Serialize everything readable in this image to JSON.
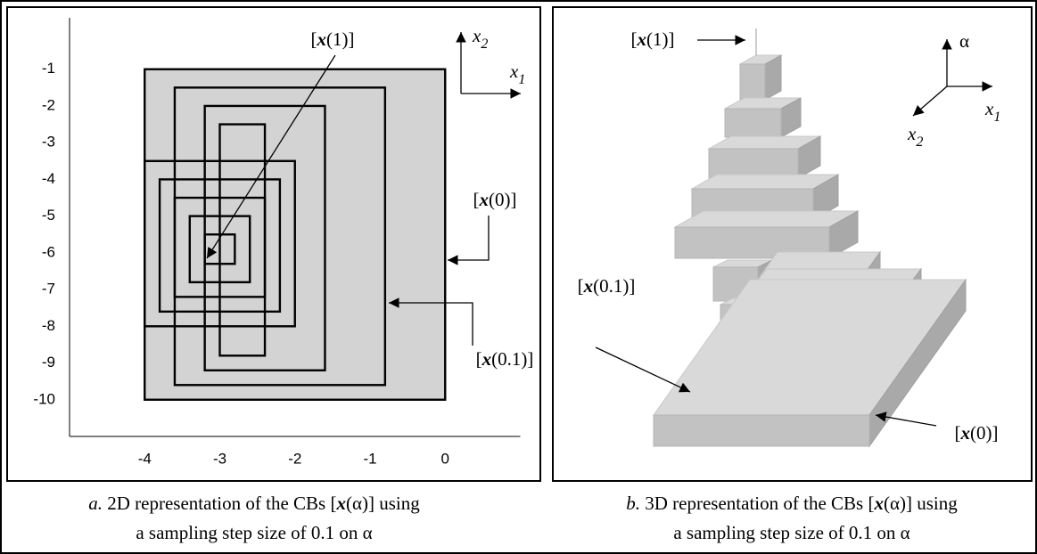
{
  "panel_a": {
    "xlim": [
      -5,
      1
    ],
    "ylim": [
      -11,
      0.4
    ],
    "xticks": [
      -4,
      -3,
      -2,
      -1,
      0
    ],
    "yticks": [
      -1,
      -2,
      -3,
      -4,
      -5,
      -6,
      -7,
      -8,
      -9,
      -10
    ],
    "boxes": [
      {
        "x": [
          -4,
          0
        ],
        "y": [
          -10,
          -1
        ]
      },
      {
        "x": [
          -3.6,
          -0.8
        ],
        "y": [
          -9.6,
          -1.5
        ]
      },
      {
        "x": [
          -3.2,
          -1.6
        ],
        "y": [
          -9.2,
          -2
        ]
      },
      {
        "x": [
          -3,
          -2.4
        ],
        "y": [
          -8.8,
          -2.5
        ]
      },
      {
        "x": [
          -4,
          -2
        ],
        "y": [
          -8,
          -3.5
        ]
      },
      {
        "x": [
          -3.8,
          -2.2
        ],
        "y": [
          -7.6,
          -4
        ]
      },
      {
        "x": [
          -3.6,
          -2.4
        ],
        "y": [
          -7.2,
          -4.5
        ]
      },
      {
        "x": [
          -3.4,
          -2.6
        ],
        "y": [
          -6.8,
          -5
        ]
      },
      {
        "x": [
          -3.2,
          -2.8
        ],
        "y": [
          -6.3,
          -5.5
        ]
      }
    ],
    "label_x1": [
      "[",
      "x",
      "(1)]"
    ],
    "label_x0": [
      "[",
      "x",
      "(0)]"
    ],
    "label_x01": [
      "[",
      "x",
      "(0.1)]"
    ],
    "axis_h": [
      "x",
      "1"
    ],
    "axis_v": [
      "x",
      "2"
    ],
    "caption": [
      [
        "a.",
        " 2D representation of the CBs  [",
        "x",
        "(α)] using"
      ],
      [
        "a sampling step size of 0.1 on α"
      ]
    ]
  },
  "panel_b": {
    "label_x1": [
      "[",
      "x",
      "(1)]"
    ],
    "label_x01": [
      "[",
      "x",
      "(0.1)]"
    ],
    "label_x0": [
      "[",
      "x",
      "(0)]"
    ],
    "axis_up": "α",
    "axis_h": [
      "x",
      "1"
    ],
    "axis_d": [
      "x",
      "2"
    ],
    "caption": [
      [
        "b.",
        " 3D representation of the CBs [",
        "x",
        "(α)] using"
      ],
      [
        "a sampling step size of 0.1 on α"
      ]
    ]
  }
}
